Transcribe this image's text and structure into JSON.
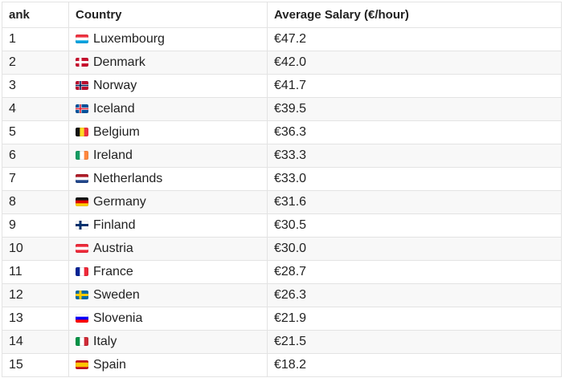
{
  "table": {
    "headers": [
      "ank",
      "Country",
      "Average Salary (€/hour)"
    ],
    "rows": [
      [
        "1",
        "Luxembourg",
        "€47.2"
      ],
      [
        "2",
        "Denmark",
        "€42.0"
      ],
      [
        "3",
        "Norway",
        "€41.7"
      ],
      [
        "4",
        "Iceland",
        "€39.5"
      ],
      [
        "5",
        "Belgium",
        "€36.3"
      ],
      [
        "6",
        "Ireland",
        "€33.3"
      ],
      [
        "7",
        "Netherlands",
        "€33.0"
      ],
      [
        "8",
        "Germany",
        "€31.6"
      ],
      [
        "9",
        "Finland",
        "€30.5"
      ],
      [
        "10",
        "Austria",
        "€30.0"
      ],
      [
        "11",
        "France",
        "€28.7"
      ],
      [
        "12",
        "Sweden",
        "€26.3"
      ],
      [
        "13",
        "Slovenia",
        "€21.9"
      ],
      [
        "14",
        "Italy",
        "€21.5"
      ],
      [
        "15",
        "Spain",
        "€18.2"
      ]
    ]
  }
}
